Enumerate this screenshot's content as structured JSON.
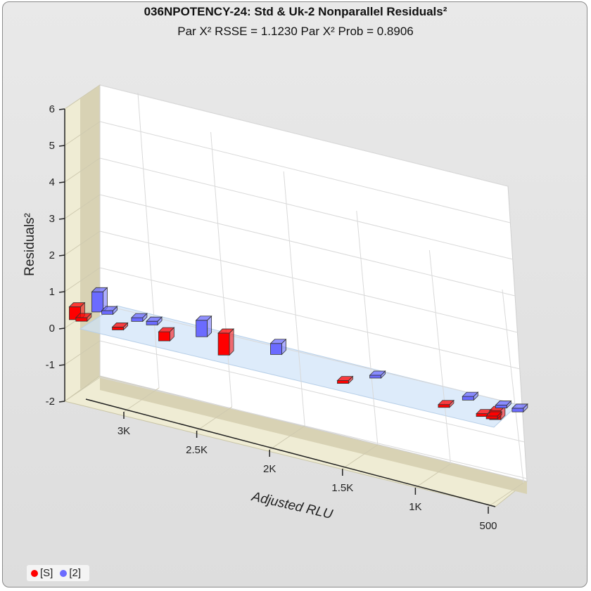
{
  "chart_data": {
    "type": "bar3d",
    "title": "036NPOTENCY-24: Std & Uk-2  Nonparallel Residuals²",
    "subtitle": "Par X² RSSE = 1.1230 Par X² Prob = 0.8906",
    "xlabel": "Adjusted RLU",
    "ylabel": "Residuals²",
    "ylim": [
      -2,
      6
    ],
    "y_ticks": [
      "6",
      "5",
      "4",
      "3",
      "2",
      "1",
      "0",
      "-1",
      "-2"
    ],
    "x_ticks": [
      "3K",
      "2.5K",
      "2K",
      "1.5K",
      "1K",
      "500"
    ],
    "xlim_reversed": [
      3300,
      450
    ],
    "series": [
      {
        "name": "[S]",
        "color": "#ff0000",
        "points": [
          {
            "x": 3080,
            "y": 0.35
          },
          {
            "x": 3040,
            "y": 0.1
          },
          {
            "x": 2820,
            "y": 0.05
          },
          {
            "x": 2540,
            "y": 0.25
          },
          {
            "x": 2180,
            "y": 0.6
          },
          {
            "x": 1460,
            "y": 0.05
          },
          {
            "x": 850,
            "y": 0.05
          },
          {
            "x": 620,
            "y": 0.05
          },
          {
            "x": 540,
            "y": 0.25
          },
          {
            "x": 560,
            "y": 0.05
          }
        ]
      },
      {
        "name": "[2]",
        "color": "#6b6bff",
        "points": [
          {
            "x": 3030,
            "y": 0.55
          },
          {
            "x": 2970,
            "y": 0.1
          },
          {
            "x": 2790,
            "y": 0.1
          },
          {
            "x": 2700,
            "y": 0.1
          },
          {
            "x": 2400,
            "y": 0.45
          },
          {
            "x": 1950,
            "y": 0.3
          },
          {
            "x": 1350,
            "y": 0.05
          },
          {
            "x": 790,
            "y": 0.1
          },
          {
            "x": 590,
            "y": 0.05
          },
          {
            "x": 490,
            "y": 0.1
          }
        ]
      }
    ],
    "legend": "bottom-left"
  }
}
